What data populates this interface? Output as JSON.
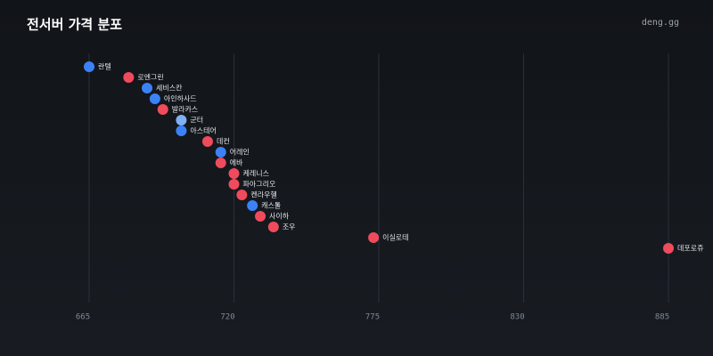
{
  "chart_data": {
    "type": "dot",
    "title": "전서버 가격 분포",
    "source": "deng.gg",
    "categories": [
      "란텔",
      "로엔그린",
      "세비스칸",
      "아인하사드",
      "발라카스",
      "군터",
      "아스테어",
      "데컨",
      "어레인",
      "에바",
      "케레니스",
      "파아그리오",
      "켄라우헬",
      "캐스톨",
      "사이하",
      "조우",
      "이실로테",
      "데포로쥬"
    ],
    "values": [
      665,
      680,
      687,
      690,
      693,
      700,
      700,
      710,
      715,
      715,
      720,
      720,
      723,
      727,
      730,
      735,
      773,
      885
    ],
    "colors": [
      "#3b82f6",
      "#ef4b5c",
      "#3b82f6",
      "#3b82f6",
      "#ef4b5c",
      "#7fb0f5",
      "#3b82f6",
      "#ef4b5c",
      "#3b82f6",
      "#ef4b5c",
      "#ef4b5c",
      "#ef4b5c",
      "#ef4b5c",
      "#3b82f6",
      "#ef4b5c",
      "#ef4b5c",
      "#ef4b5c",
      "#ef4b5c"
    ],
    "xlim": [
      665,
      885
    ],
    "xticks": [
      665,
      720,
      775,
      830,
      885
    ],
    "grid": true
  }
}
